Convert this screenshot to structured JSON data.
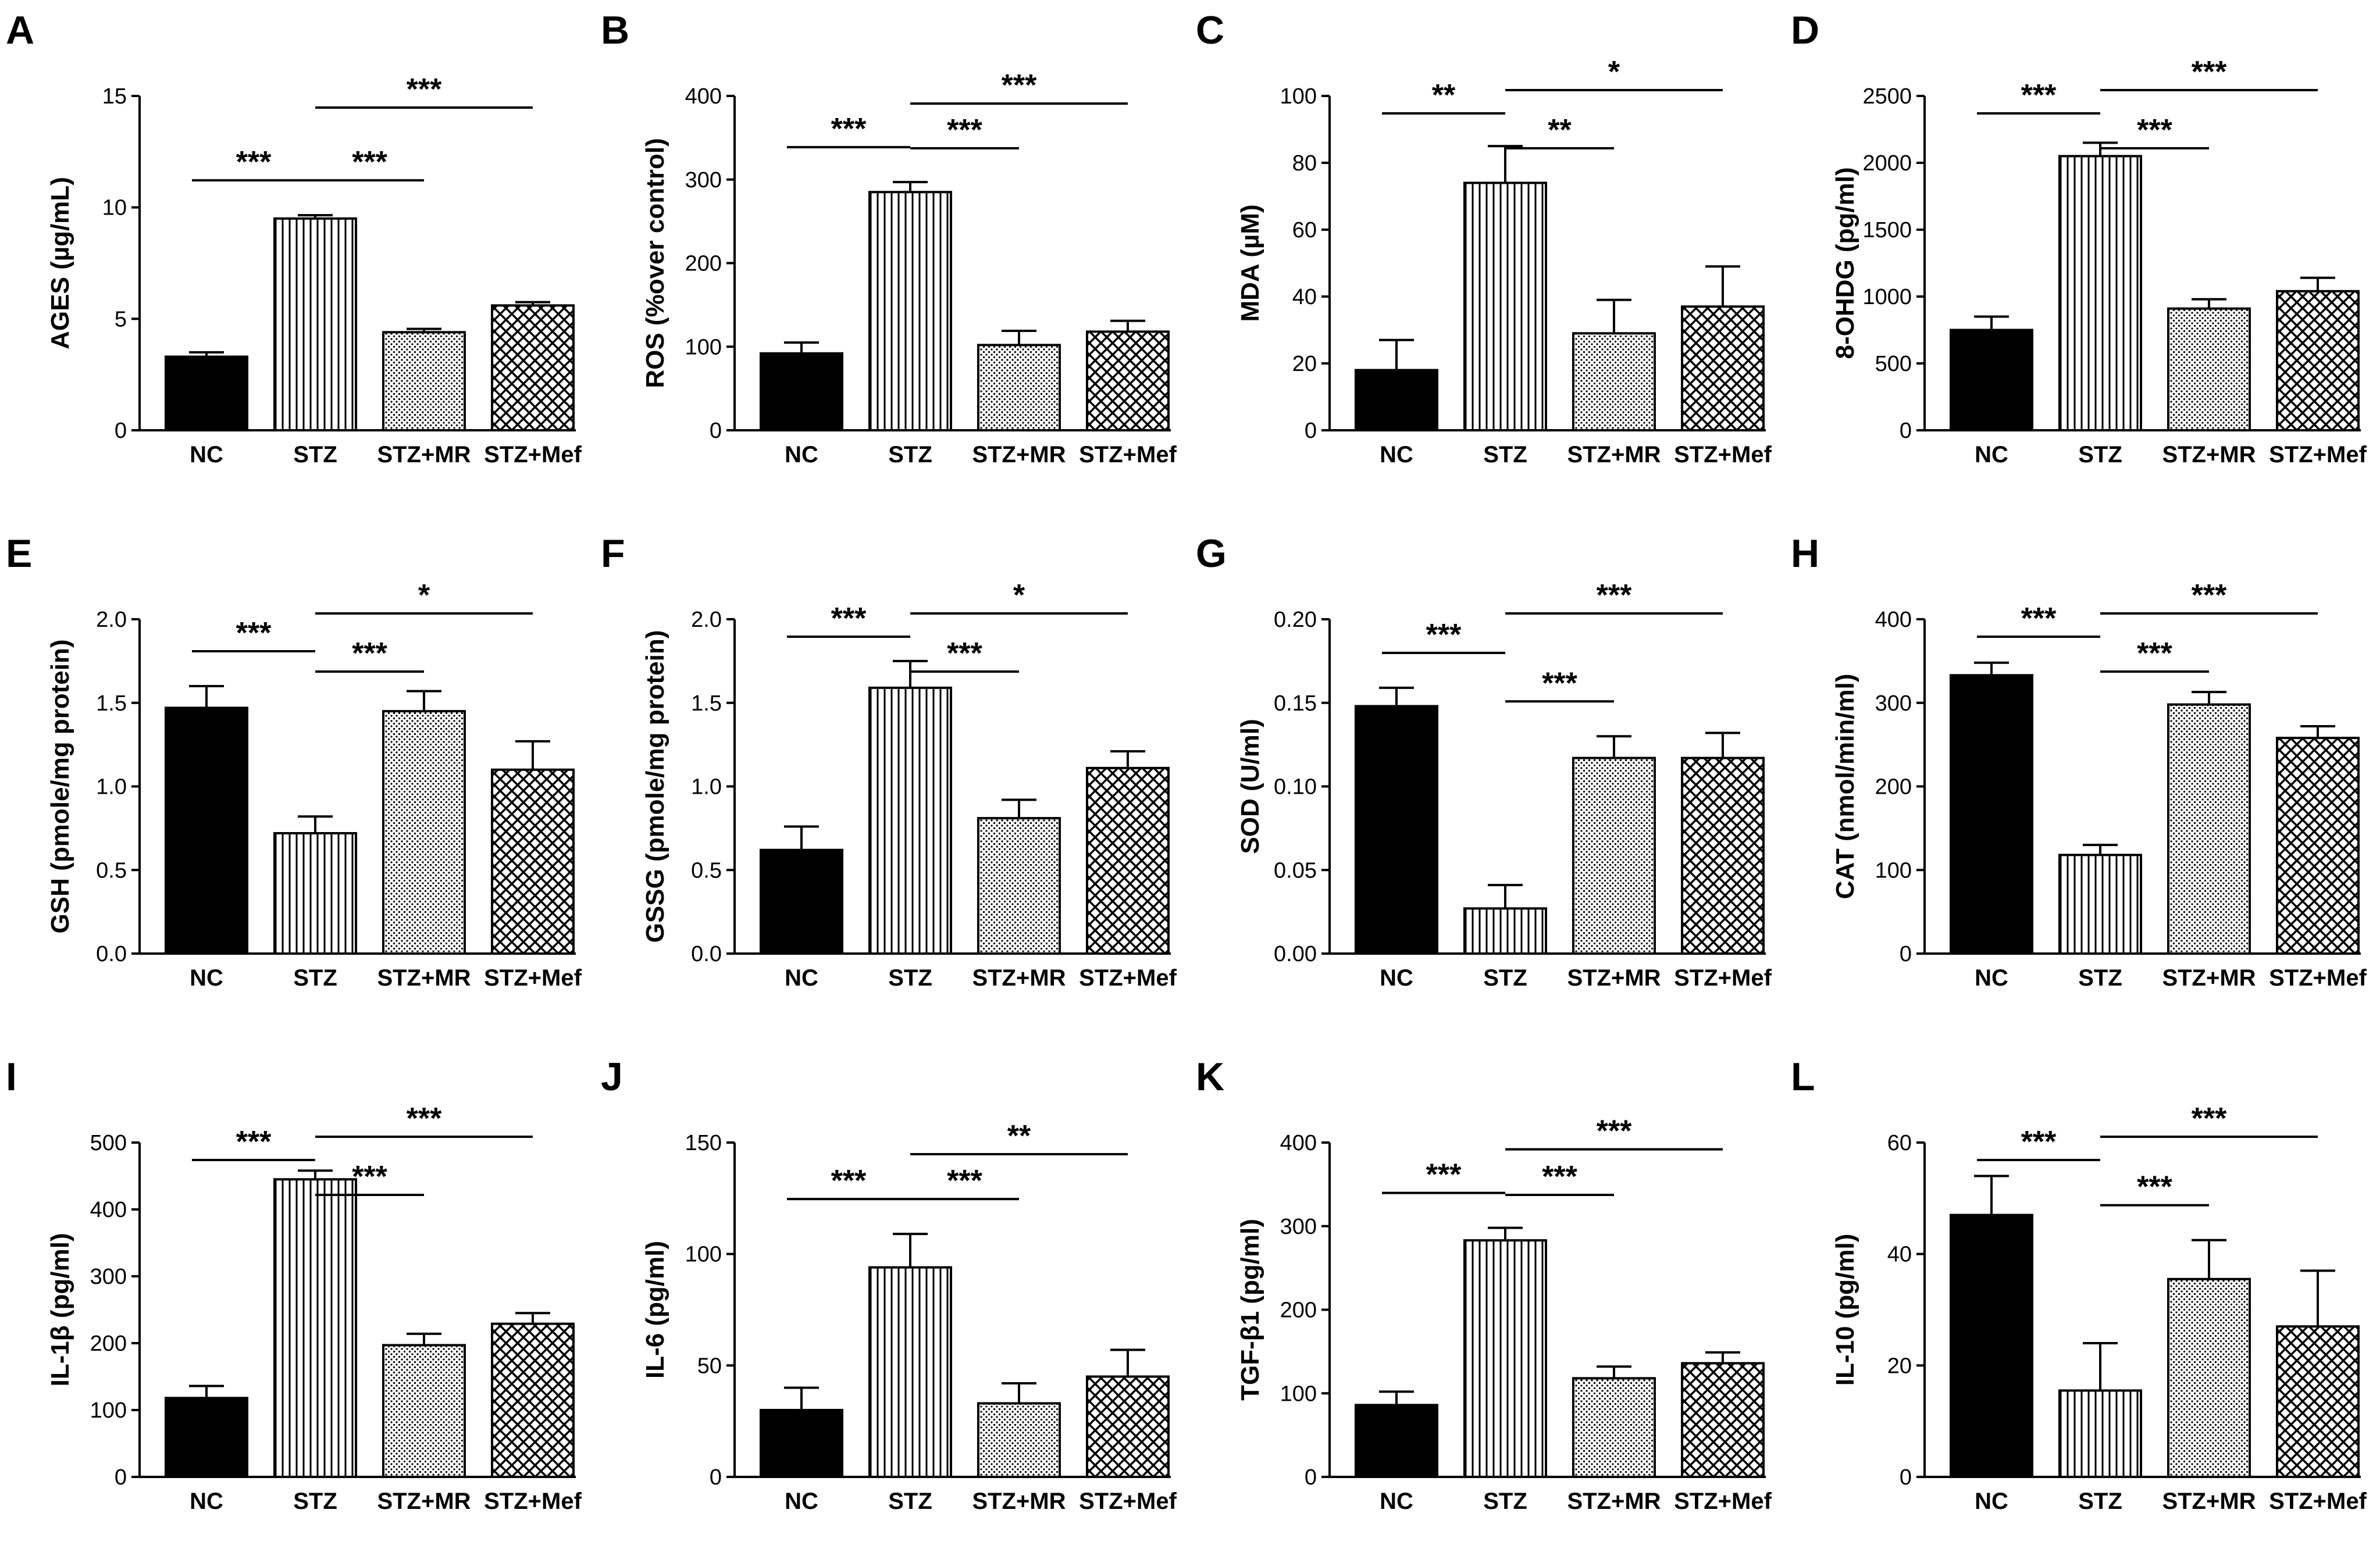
{
  "chart_data": [
    {
      "panel": "A",
      "type": "bar",
      "ylabel": "AGES (µg/mL)",
      "categories": [
        "NC",
        "STZ",
        "STZ+MR",
        "STZ+Mef"
      ],
      "values": [
        3.3,
        9.5,
        4.4,
        5.6
      ],
      "errors": [
        0.2,
        0.15,
        0.15,
        0.15
      ],
      "ylim": [
        0,
        15
      ],
      "yticks": [
        "0",
        "5",
        "10",
        "15"
      ],
      "brackets": [
        {
          "from": 0,
          "to": 1,
          "label": "***"
        },
        {
          "from": 1,
          "to": 2,
          "label": "***"
        },
        {
          "from": 1,
          "to": 3,
          "label": "***"
        }
      ]
    },
    {
      "panel": "B",
      "type": "bar",
      "ylabel": "ROS (%over control)",
      "categories": [
        "NC",
        "STZ",
        "STZ+MR",
        "STZ+Mef"
      ],
      "values": [
        92,
        285,
        102,
        118
      ],
      "errors": [
        13,
        12,
        17,
        13
      ],
      "ylim": [
        0,
        400
      ],
      "yticks": [
        "0",
        "100",
        "200",
        "300",
        "400"
      ],
      "brackets": [
        {
          "from": 0,
          "to": 1,
          "label": "***"
        },
        {
          "from": 1,
          "to": 2,
          "label": "***"
        },
        {
          "from": 1,
          "to": 3,
          "label": "***"
        }
      ]
    },
    {
      "panel": "C",
      "type": "bar",
      "ylabel": "MDA (µM)",
      "categories": [
        "NC",
        "STZ",
        "STZ+MR",
        "STZ+Mef"
      ],
      "values": [
        18,
        74,
        29,
        37
      ],
      "errors": [
        9,
        11,
        10,
        12
      ],
      "ylim": [
        0,
        100
      ],
      "yticks": [
        "0",
        "20",
        "40",
        "60",
        "80",
        "100"
      ],
      "brackets": [
        {
          "from": 0,
          "to": 1,
          "label": "**"
        },
        {
          "from": 1,
          "to": 2,
          "label": "**"
        },
        {
          "from": 1,
          "to": 3,
          "label": "*"
        }
      ]
    },
    {
      "panel": "D",
      "type": "bar",
      "ylabel": "8-OHDG (pg/ml)",
      "categories": [
        "NC",
        "STZ",
        "STZ+MR",
        "STZ+Mef"
      ],
      "values": [
        750,
        2050,
        910,
        1040
      ],
      "errors": [
        100,
        100,
        70,
        100
      ],
      "ylim": [
        0,
        2500
      ],
      "yticks": [
        "0",
        "500",
        "1000",
        "1500",
        "2000",
        "2500"
      ],
      "brackets": [
        {
          "from": 0,
          "to": 1,
          "label": "***"
        },
        {
          "from": 1,
          "to": 2,
          "label": "***"
        },
        {
          "from": 1,
          "to": 3,
          "label": "***"
        }
      ]
    },
    {
      "panel": "E",
      "type": "bar",
      "ylabel": "GSH (pmole/mg protein)",
      "categories": [
        "NC",
        "STZ",
        "STZ+MR",
        "STZ+Mef"
      ],
      "values": [
        1.47,
        0.72,
        1.45,
        1.1
      ],
      "errors": [
        0.13,
        0.1,
        0.12,
        0.17
      ],
      "ylim": [
        0,
        2
      ],
      "yticks": [
        "0.0",
        "0.5",
        "1.0",
        "1.5",
        "2.0"
      ],
      "brackets": [
        {
          "from": 0,
          "to": 1,
          "label": "***"
        },
        {
          "from": 1,
          "to": 2,
          "label": "***"
        },
        {
          "from": 1,
          "to": 3,
          "label": "*"
        }
      ]
    },
    {
      "panel": "F",
      "type": "bar",
      "ylabel": "GSSG (pmole/mg protein)",
      "categories": [
        "NC",
        "STZ",
        "STZ+MR",
        "STZ+Mef"
      ],
      "values": [
        0.62,
        1.59,
        0.81,
        1.11
      ],
      "errors": [
        0.14,
        0.16,
        0.11,
        0.1
      ],
      "ylim": [
        0,
        2
      ],
      "yticks": [
        "0.0",
        "0.5",
        "1.0",
        "1.5",
        "2.0"
      ],
      "brackets": [
        {
          "from": 0,
          "to": 1,
          "label": "***"
        },
        {
          "from": 1,
          "to": 2,
          "label": "***"
        },
        {
          "from": 1,
          "to": 3,
          "label": "*"
        }
      ]
    },
    {
      "panel": "G",
      "type": "bar",
      "ylabel": "SOD (U/ml)",
      "categories": [
        "NC",
        "STZ",
        "STZ+MR",
        "STZ+Mef"
      ],
      "values": [
        0.148,
        0.027,
        0.117,
        0.117
      ],
      "errors": [
        0.011,
        0.014,
        0.013,
        0.015
      ],
      "ylim": [
        0,
        0.2
      ],
      "yticks": [
        "0.00",
        "0.05",
        "0.10",
        "0.15",
        "0.20"
      ],
      "brackets": [
        {
          "from": 0,
          "to": 1,
          "label": "***"
        },
        {
          "from": 1,
          "to": 2,
          "label": "***"
        },
        {
          "from": 1,
          "to": 3,
          "label": "***"
        }
      ]
    },
    {
      "panel": "H",
      "type": "bar",
      "ylabel": "CAT (nmol/min/ml)",
      "categories": [
        "NC",
        "STZ",
        "STZ+MR",
        "STZ+Mef"
      ],
      "values": [
        333,
        118,
        298,
        258
      ],
      "errors": [
        15,
        12,
        15,
        14
      ],
      "ylim": [
        0,
        400
      ],
      "yticks": [
        "0",
        "100",
        "200",
        "300",
        "400"
      ],
      "brackets": [
        {
          "from": 0,
          "to": 1,
          "label": "***"
        },
        {
          "from": 1,
          "to": 2,
          "label": "***"
        },
        {
          "from": 1,
          "to": 3,
          "label": "***"
        }
      ]
    },
    {
      "panel": "I",
      "type": "bar",
      "ylabel": "IL-1β (pg/ml)",
      "categories": [
        "NC",
        "STZ",
        "STZ+MR",
        "STZ+Mef"
      ],
      "values": [
        118,
        445,
        197,
        229
      ],
      "errors": [
        18,
        13,
        17,
        16
      ],
      "ylim": [
        0,
        500
      ],
      "yticks": [
        "0",
        "100",
        "200",
        "300",
        "400",
        "500"
      ],
      "brackets": [
        {
          "from": 0,
          "to": 1,
          "label": "***"
        },
        {
          "from": 1,
          "to": 2,
          "label": "***"
        },
        {
          "from": 1,
          "to": 3,
          "label": "***"
        }
      ]
    },
    {
      "panel": "J",
      "type": "bar",
      "ylabel": "IL-6 (pg/ml)",
      "categories": [
        "NC",
        "STZ",
        "STZ+MR",
        "STZ+Mef"
      ],
      "values": [
        30,
        94,
        33,
        45
      ],
      "errors": [
        10,
        15,
        9,
        12
      ],
      "ylim": [
        0,
        150
      ],
      "yticks": [
        "0",
        "50",
        "100",
        "150"
      ],
      "brackets": [
        {
          "from": 0,
          "to": 1,
          "label": "***"
        },
        {
          "from": 1,
          "to": 2,
          "label": "***"
        },
        {
          "from": 1,
          "to": 3,
          "label": "**"
        }
      ]
    },
    {
      "panel": "K",
      "type": "bar",
      "ylabel": "TGF-β1 (pg/ml)",
      "categories": [
        "NC",
        "STZ",
        "STZ+MR",
        "STZ+Mef"
      ],
      "values": [
        86,
        283,
        118,
        136
      ],
      "errors": [
        16,
        15,
        14,
        13
      ],
      "ylim": [
        0,
        400
      ],
      "yticks": [
        "0",
        "100",
        "200",
        "300",
        "400"
      ],
      "brackets": [
        {
          "from": 0,
          "to": 1,
          "label": "***"
        },
        {
          "from": 1,
          "to": 2,
          "label": "***"
        },
        {
          "from": 1,
          "to": 3,
          "label": "***"
        }
      ]
    },
    {
      "panel": "L",
      "type": "bar",
      "ylabel": "IL-10 (pg/ml)",
      "categories": [
        "NC",
        "STZ",
        "STZ+MR",
        "STZ+Mef"
      ],
      "values": [
        47,
        15.5,
        35.5,
        27
      ],
      "errors": [
        7,
        8.5,
        7,
        10
      ],
      "ylim": [
        0,
        60
      ],
      "yticks": [
        "0",
        "20",
        "40",
        "60"
      ],
      "brackets": [
        {
          "from": 0,
          "to": 1,
          "label": "***"
        },
        {
          "from": 1,
          "to": 2,
          "label": "***"
        },
        {
          "from": 1,
          "to": 3,
          "label": "***"
        }
      ]
    }
  ],
  "style": {
    "bar_fill_nc": "#000000",
    "bar_stroke": "#000000",
    "background": "#ffffff"
  }
}
